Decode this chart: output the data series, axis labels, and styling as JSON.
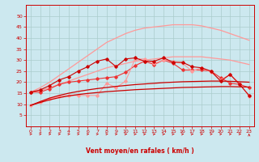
{
  "x": [
    0,
    1,
    2,
    3,
    4,
    5,
    6,
    7,
    8,
    9,
    10,
    11,
    12,
    13,
    14,
    15,
    16,
    17,
    18,
    19,
    20,
    21,
    22,
    23
  ],
  "line_smooth1": [
    9.5,
    10.8,
    12.0,
    13.0,
    13.8,
    14.4,
    14.9,
    15.3,
    15.7,
    16.0,
    16.3,
    16.6,
    16.8,
    17.0,
    17.2,
    17.4,
    17.6,
    17.7,
    17.8,
    17.9,
    18.0,
    18.0,
    17.9,
    17.8
  ],
  "line_smooth2": [
    9.5,
    11.2,
    12.8,
    14.0,
    15.0,
    15.8,
    16.5,
    17.1,
    17.6,
    18.1,
    18.5,
    18.9,
    19.2,
    19.5,
    19.8,
    20.0,
    20.2,
    20.3,
    20.4,
    20.5,
    20.5,
    20.4,
    20.2,
    20.0
  ],
  "line_smooth3": [
    15.5,
    16.2,
    17.5,
    19.0,
    20.5,
    22.0,
    23.5,
    25.0,
    26.5,
    27.5,
    28.5,
    29.5,
    30.0,
    30.5,
    31.0,
    31.5,
    31.5,
    31.5,
    31.5,
    31.0,
    30.5,
    30.0,
    29.0,
    28.0
  ],
  "line_smooth4": [
    15.5,
    17.5,
    20.0,
    23.0,
    26.0,
    29.0,
    32.0,
    35.0,
    38.0,
    40.0,
    42.0,
    43.5,
    44.5,
    45.0,
    45.5,
    46.0,
    46.0,
    46.0,
    45.5,
    44.5,
    43.5,
    42.0,
    40.5,
    39.0
  ],
  "line_marked1": [
    15.5,
    15.5,
    17.0,
    19.0,
    20.0,
    20.5,
    21.0,
    21.5,
    22.0,
    22.5,
    24.5,
    27.5,
    29.5,
    28.0,
    30.0,
    28.5,
    25.5,
    25.5,
    25.5,
    25.0,
    22.0,
    19.5,
    19.0,
    17.5
  ],
  "line_marked2": [
    15.5,
    16.5,
    18.5,
    21.0,
    22.5,
    25.0,
    27.0,
    29.5,
    30.5,
    27.0,
    30.5,
    31.0,
    29.5,
    29.5,
    31.0,
    29.0,
    29.0,
    27.0,
    26.5,
    25.0,
    20.5,
    23.5,
    19.0,
    14.0
  ],
  "line_marked3": [
    9.5,
    11.0,
    12.5,
    13.5,
    14.0,
    14.0,
    14.0,
    14.0,
    19.5,
    17.5,
    20.5,
    30.5,
    30.5,
    28.5,
    30.0,
    29.5,
    28.5,
    25.0,
    26.5,
    24.5,
    21.0,
    23.5,
    19.5,
    13.5
  ],
  "arrow_angles_deg": [
    80,
    80,
    80,
    80,
    85,
    80,
    80,
    85,
    75,
    60,
    55,
    50,
    50,
    50,
    50,
    50,
    50,
    50,
    55,
    65,
    70,
    75,
    80,
    0
  ],
  "background_color": "#cce8ef",
  "grid_color": "#aacccc",
  "color_dark_red": "#cc0000",
  "color_mid_red": "#ee3333",
  "color_light_red": "#ff9999",
  "color_pale_red": "#ffbbbb",
  "xlabel": "Vent moyen/en rafales ( km/h )",
  "ylim": [
    0,
    55
  ],
  "xlim": [
    -0.5,
    23.5
  ],
  "yticks": [
    5,
    10,
    15,
    20,
    25,
    30,
    35,
    40,
    45,
    50
  ],
  "xticks": [
    0,
    1,
    2,
    3,
    4,
    5,
    6,
    7,
    8,
    9,
    10,
    11,
    12,
    13,
    14,
    15,
    16,
    17,
    18,
    19,
    20,
    21,
    22,
    23
  ]
}
